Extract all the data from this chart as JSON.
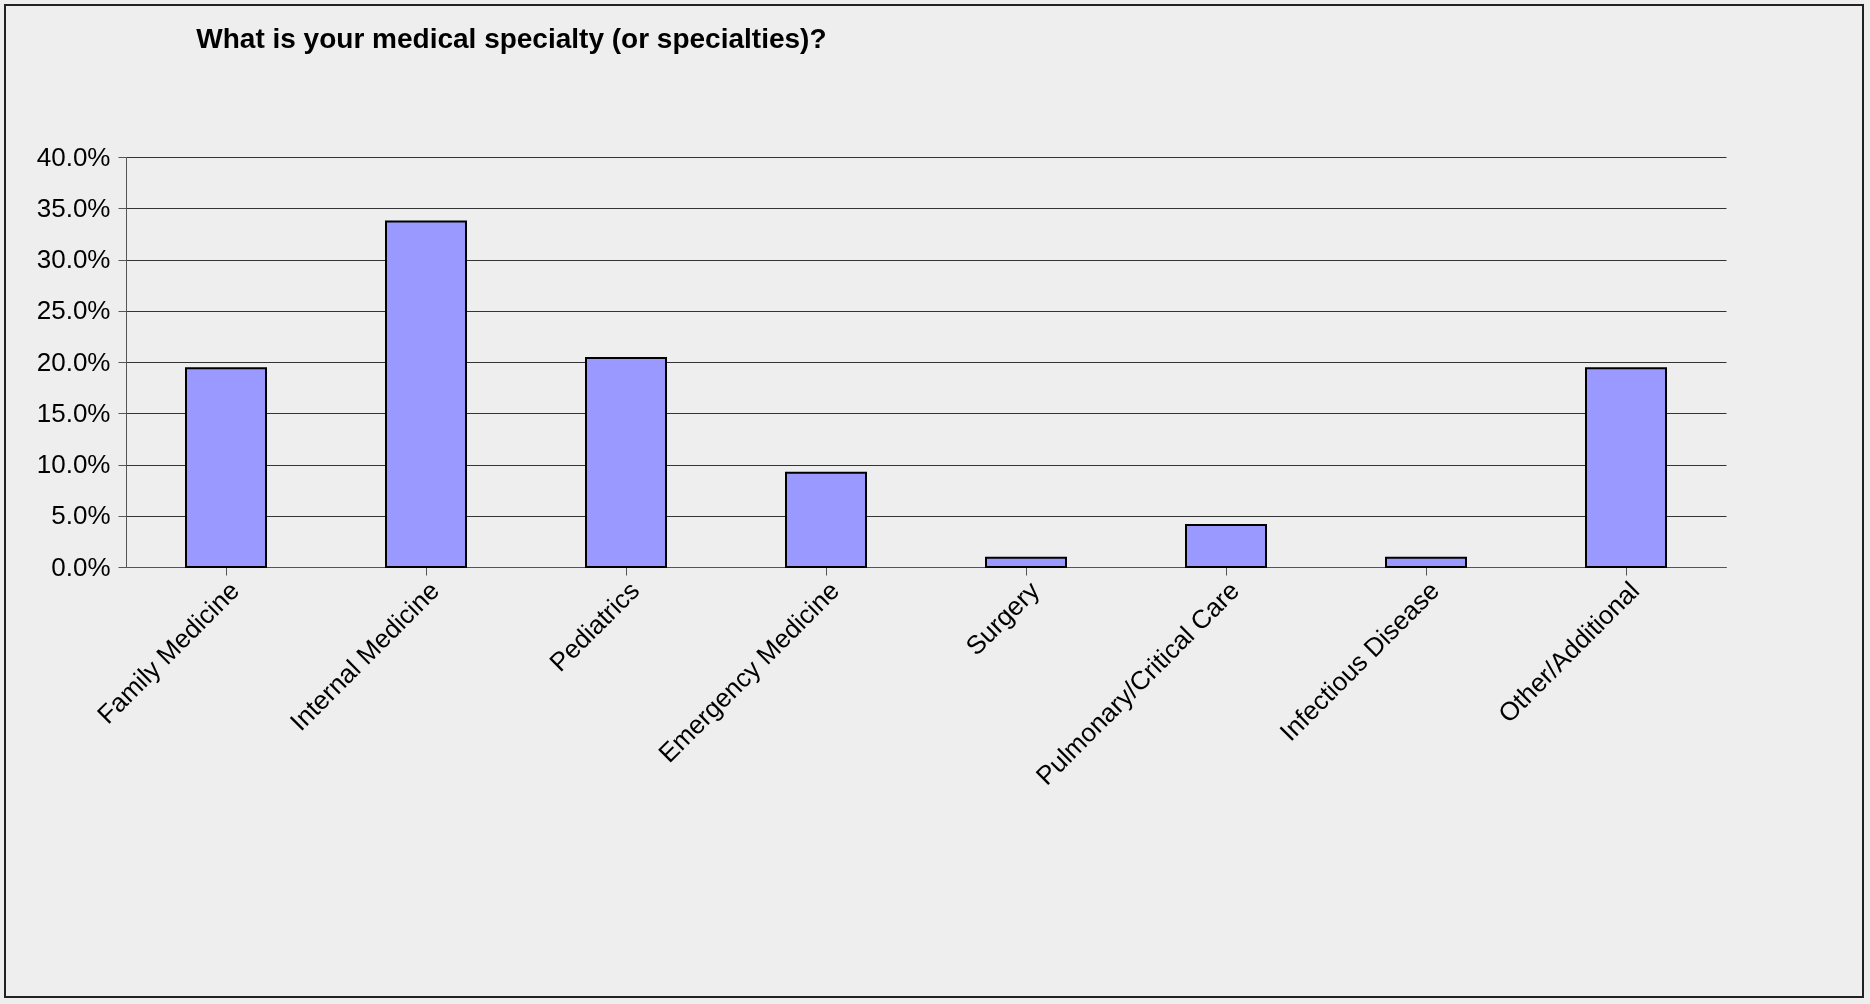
{
  "chart_data": {
    "type": "bar",
    "title": "What is your medical specialty (or specialties)?",
    "categories": [
      "Family Medicine",
      "Internal Medicine",
      "Pediatrics",
      "Emergency Medicine",
      "Surgery",
      "Pulmonary/Critical Care",
      "Infectious Disease",
      "Other/Additional"
    ],
    "values": [
      19.4,
      33.7,
      20.4,
      9.2,
      0.9,
      4.1,
      0.9,
      19.4
    ],
    "color": "#9999ff",
    "ylim": [
      0,
      40
    ],
    "yticks": [
      {
        "value": 0,
        "label": "0.0%"
      },
      {
        "value": 5,
        "label": "5.0%"
      },
      {
        "value": 10,
        "label": "10.0%"
      },
      {
        "value": 15,
        "label": "15.0%"
      },
      {
        "value": 20,
        "label": "20.0%"
      },
      {
        "value": 25,
        "label": "25.0%"
      },
      {
        "value": 30,
        "label": "30.0%"
      },
      {
        "value": 35,
        "label": "35.0%"
      },
      {
        "value": 40,
        "label": "40.0%"
      }
    ],
    "grid": "y"
  }
}
